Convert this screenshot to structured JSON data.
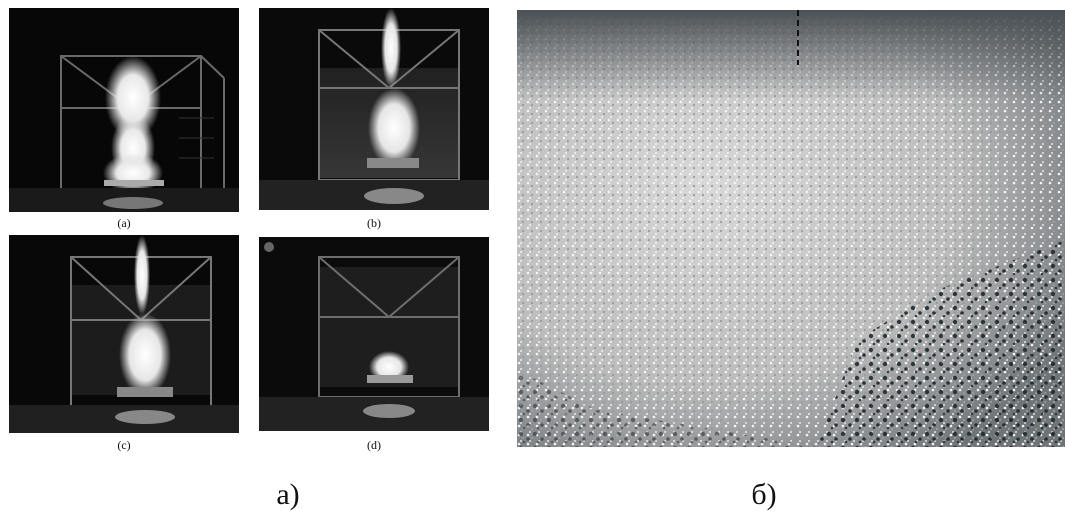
{
  "panels": [
    {
      "id": "a",
      "caption": "(a)"
    },
    {
      "id": "b",
      "caption": "(b)"
    },
    {
      "id": "c",
      "caption": "(c)"
    },
    {
      "id": "d",
      "caption": "(d)"
    }
  ],
  "figure_labels": {
    "left": "а)",
    "right": "б)"
  }
}
